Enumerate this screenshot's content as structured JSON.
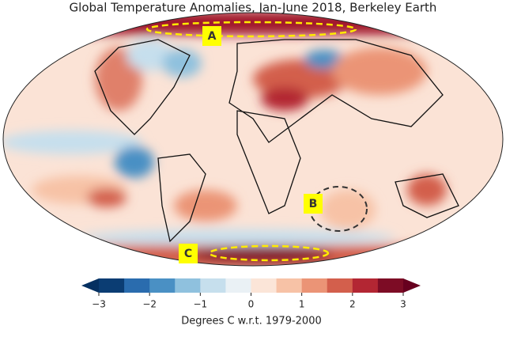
{
  "title": "Global Temperature Anomalies, Jan-June 2018, Berkeley Earth",
  "annotations": [
    "A",
    "B",
    "C"
  ],
  "colorbar": {
    "label": "Degrees C w.r.t. 1979-2000",
    "lim": [
      -3,
      3
    ],
    "ticks": [
      {
        "value": -3,
        "label": "−3"
      },
      {
        "value": -2,
        "label": "−2"
      },
      {
        "value": -1,
        "label": "−1"
      },
      0,
      1,
      2,
      3
    ],
    "colors": [
      "#0b3d73",
      "#2a6cae",
      "#4a90c4",
      "#8fc1de",
      "#c6dfed",
      "#eaf1f5",
      "#fbe5d8",
      "#f7c2a6",
      "#eb9476",
      "#d35f4c",
      "#b32633",
      "#7d0c25"
    ],
    "extend_colors": [
      "#053061",
      "#67001f"
    ]
  }
}
